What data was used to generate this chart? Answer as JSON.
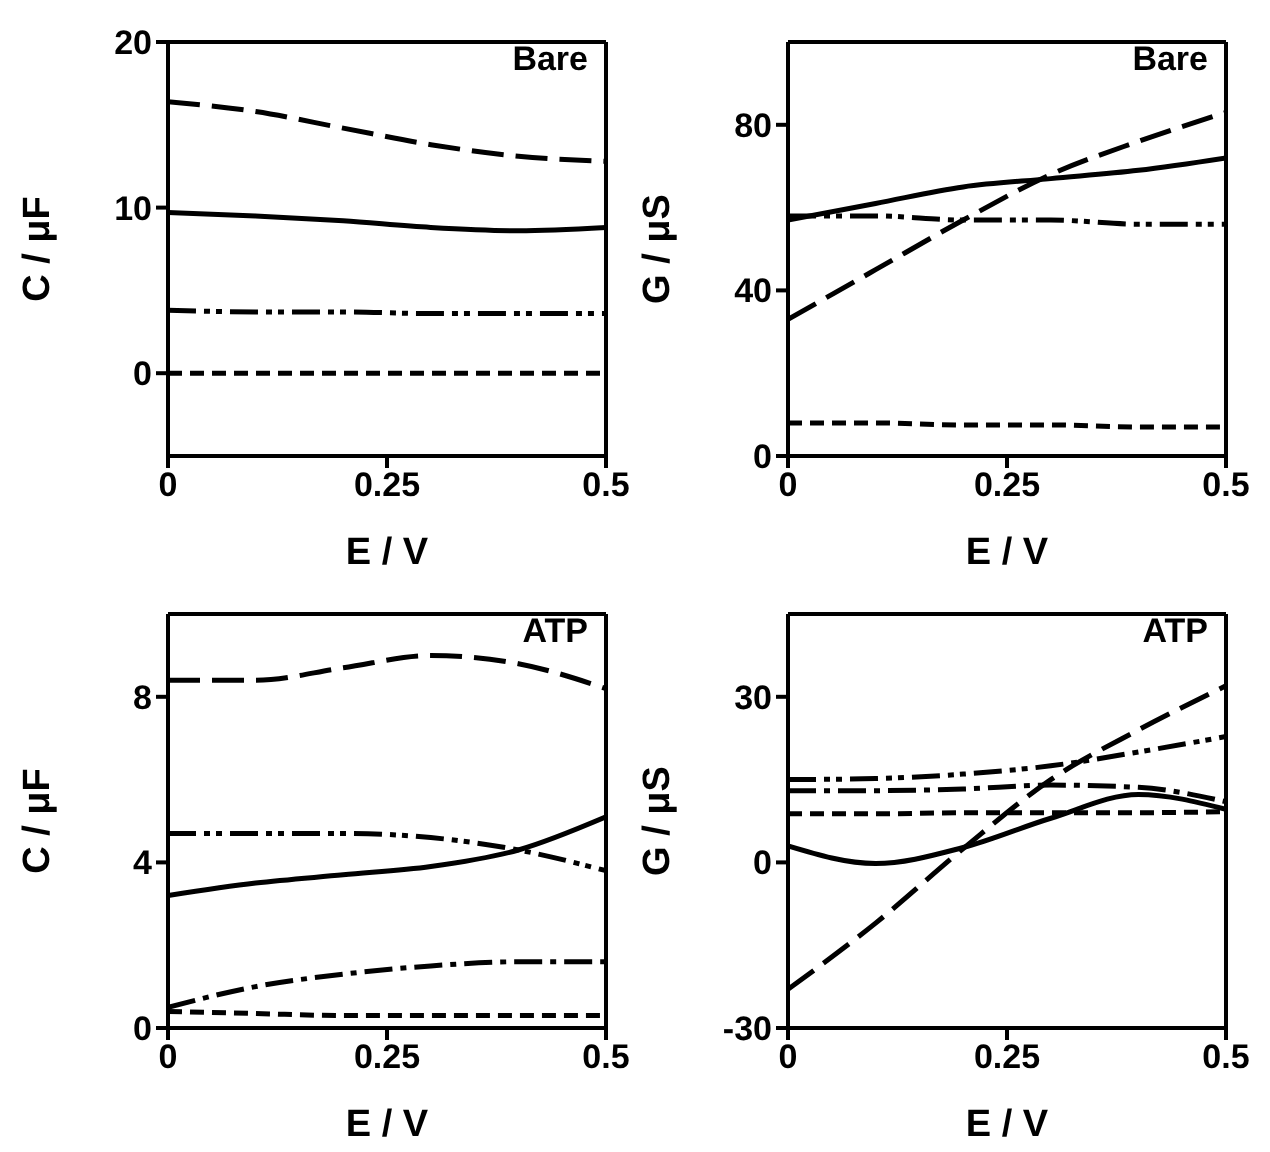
{
  "chart_data": [
    {
      "type": "line",
      "title": "Bare",
      "xlabel": "E / V",
      "ylabel": "C / μF",
      "x": [
        0,
        0.1,
        0.2,
        0.3,
        0.4,
        0.5
      ],
      "xlim": [
        0,
        0.5
      ],
      "xticks": [
        0,
        0.25,
        0.5
      ],
      "ylim": [
        -5,
        20
      ],
      "yticks": [
        0,
        10,
        20
      ],
      "marker": "none",
      "series": [
        {
          "color": "#000000",
          "line_style": "longdash",
          "values": [
            16.4,
            15.8,
            14.8,
            13.8,
            13.1,
            12.8
          ]
        },
        {
          "color": "#000000",
          "line_style": "solid",
          "values": [
            9.7,
            9.5,
            9.2,
            8.8,
            8.6,
            8.8
          ]
        },
        {
          "color": "#000000",
          "line_style": "dashdotdot",
          "values": [
            3.8,
            3.7,
            3.7,
            3.6,
            3.6,
            3.6
          ]
        },
        {
          "color": "#000000",
          "line_style": "dashed",
          "values": [
            0,
            0,
            0,
            0,
            0,
            0
          ]
        }
      ]
    },
    {
      "type": "line",
      "title": "Bare",
      "xlabel": "E / V",
      "ylabel": "G / μS",
      "x": [
        0,
        0.1,
        0.2,
        0.3,
        0.4,
        0.5
      ],
      "xlim": [
        0,
        0.5
      ],
      "xticks": [
        0,
        0.25,
        0.5
      ],
      "ylim": [
        0,
        100
      ],
      "yticks": [
        0,
        40,
        80
      ],
      "marker": "none",
      "series": [
        {
          "color": "#000000",
          "line_style": "longdash",
          "values": [
            33,
            45,
            57,
            68,
            76,
            83
          ]
        },
        {
          "color": "#000000",
          "line_style": "solid",
          "values": [
            57,
            61,
            65,
            67,
            69,
            72
          ]
        },
        {
          "color": "#000000",
          "line_style": "dashdotdot",
          "values": [
            58,
            58,
            57,
            57,
            56,
            56
          ]
        },
        {
          "color": "#000000",
          "line_style": "dashed",
          "values": [
            8,
            8,
            7.5,
            7.5,
            7,
            7
          ]
        }
      ]
    },
    {
      "type": "line",
      "title": "ATP",
      "xlabel": "E / V",
      "ylabel": "C / μF",
      "x": [
        0,
        0.1,
        0.2,
        0.3,
        0.4,
        0.5
      ],
      "xlim": [
        0,
        0.5
      ],
      "xticks": [
        0,
        0.25,
        0.5
      ],
      "ylim": [
        0,
        10
      ],
      "yticks": [
        0,
        4,
        8
      ],
      "marker": "none",
      "series": [
        {
          "color": "#000000",
          "line_style": "longdash",
          "values": [
            8.4,
            8.4,
            8.7,
            9.0,
            8.8,
            8.2
          ]
        },
        {
          "color": "#000000",
          "line_style": "solid",
          "values": [
            3.2,
            3.5,
            3.7,
            3.9,
            4.3,
            5.1
          ]
        },
        {
          "color": "#000000",
          "line_style": "dashdotdot",
          "values": [
            4.7,
            4.7,
            4.7,
            4.6,
            4.3,
            3.8
          ]
        },
        {
          "color": "#000000",
          "line_style": "dashdot",
          "values": [
            0.5,
            1.0,
            1.3,
            1.5,
            1.6,
            1.6
          ]
        },
        {
          "color": "#000000",
          "line_style": "dashed",
          "values": [
            0.4,
            0.35,
            0.3,
            0.3,
            0.3,
            0.3
          ]
        }
      ]
    },
    {
      "type": "line",
      "title": "ATP",
      "xlabel": "E / V",
      "ylabel": "G / μS",
      "x": [
        0,
        0.1,
        0.2,
        0.3,
        0.4,
        0.5
      ],
      "xlim": [
        0,
        0.5
      ],
      "xticks": [
        0,
        0.25,
        0.5
      ],
      "ylim": [
        -30,
        45
      ],
      "yticks": [
        -30,
        0,
        30
      ],
      "marker": "none",
      "series": [
        {
          "color": "#000000",
          "line_style": "longdash",
          "values": [
            -23,
            -11,
            2.5,
            15,
            24,
            32
          ]
        },
        {
          "color": "#000000",
          "line_style": "solid",
          "values": [
            3,
            -0.2,
            2.7,
            8,
            12.3,
            9.6
          ]
        },
        {
          "color": "#000000",
          "line_style": "dashdotdot",
          "values": [
            15,
            15.2,
            16,
            17.5,
            20,
            22.8
          ]
        },
        {
          "color": "#000000",
          "line_style": "dashdot",
          "values": [
            13,
            13,
            13.3,
            14,
            13.6,
            11
          ]
        },
        {
          "color": "#000000",
          "line_style": "dashed",
          "values": [
            8.8,
            8.8,
            9,
            9,
            9,
            9.2
          ]
        }
      ]
    }
  ]
}
